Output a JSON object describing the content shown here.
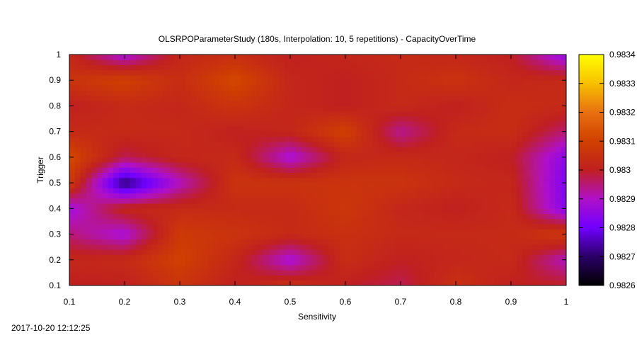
{
  "chart_data": {
    "type": "heatmap",
    "title": "OLSRPOParameterStudy (180s, Interpolation: 10, 5 repetitions) - CapacityOverTime",
    "xlabel": "Sensitivity",
    "ylabel": "Trigger",
    "xlim": [
      0.1,
      1
    ],
    "ylim": [
      0.1,
      1
    ],
    "x_ticks": [
      "0.1",
      "0.2",
      "0.3",
      "0.4",
      "0.5",
      "0.6",
      "0.7",
      "0.8",
      "0.9",
      "1"
    ],
    "y_ticks": [
      "0.1",
      "0.2",
      "0.3",
      "0.4",
      "0.5",
      "0.6",
      "0.7",
      "0.8",
      "0.9",
      "1"
    ],
    "colorbar": {
      "range": [
        0.9826,
        0.9834
      ],
      "ticks": [
        "0.9826",
        "0.9827",
        "0.9828",
        "0.9829",
        "0.983",
        "0.9831",
        "0.9832",
        "0.9833",
        "0.9834"
      ],
      "palette": [
        "#000000",
        "#2b0066",
        "#7000ff",
        "#b010c8",
        "#c02020",
        "#d04000",
        "#e87010",
        "#f8c000",
        "#ffff00"
      ]
    },
    "grid": false,
    "x": [
      0.1,
      0.2,
      0.3,
      0.4,
      0.5,
      0.6,
      0.7,
      0.8,
      0.9,
      1.0
    ],
    "y": [
      0.1,
      0.2,
      0.3,
      0.4,
      0.5,
      0.6,
      0.7,
      0.8,
      0.9,
      1.0
    ],
    "z": [
      [
        0.983,
        0.983,
        0.98306,
        0.983,
        0.98305,
        0.983,
        0.98297,
        0.98305,
        0.983,
        0.983
      ],
      [
        0.98302,
        0.98303,
        0.9831,
        0.98302,
        0.98288,
        0.98304,
        0.983,
        0.98302,
        0.98303,
        0.9829
      ],
      [
        0.98295,
        0.98288,
        0.98308,
        0.98306,
        0.98303,
        0.98305,
        0.98303,
        0.98303,
        0.98303,
        0.98308
      ],
      [
        0.98287,
        0.98302,
        0.98303,
        0.98303,
        0.98303,
        0.98307,
        0.98302,
        0.983,
        0.98303,
        0.98283
      ],
      [
        0.98308,
        0.9827,
        0.9829,
        0.98306,
        0.98306,
        0.98306,
        0.98306,
        0.98303,
        0.98302,
        0.98282
      ],
      [
        0.98312,
        0.98297,
        0.98302,
        0.98303,
        0.98288,
        0.98302,
        0.98303,
        0.98302,
        0.983,
        0.98284
      ],
      [
        0.98303,
        0.98303,
        0.98303,
        0.983,
        0.98302,
        0.9831,
        0.98293,
        0.98303,
        0.98304,
        0.98295
      ],
      [
        0.983,
        0.98303,
        0.98302,
        0.98306,
        0.98302,
        0.983,
        0.98303,
        0.983,
        0.98304,
        0.98303
      ],
      [
        0.98306,
        0.9831,
        0.98304,
        0.98312,
        0.98302,
        0.983,
        0.98303,
        0.98306,
        0.98302,
        0.98303
      ],
      [
        0.98302,
        0.98288,
        0.98302,
        0.98304,
        0.983,
        0.98302,
        0.98303,
        0.98302,
        0.983,
        0.98285
      ]
    ]
  },
  "footer": {
    "timestamp": "2017-10-20 12:12:25"
  }
}
